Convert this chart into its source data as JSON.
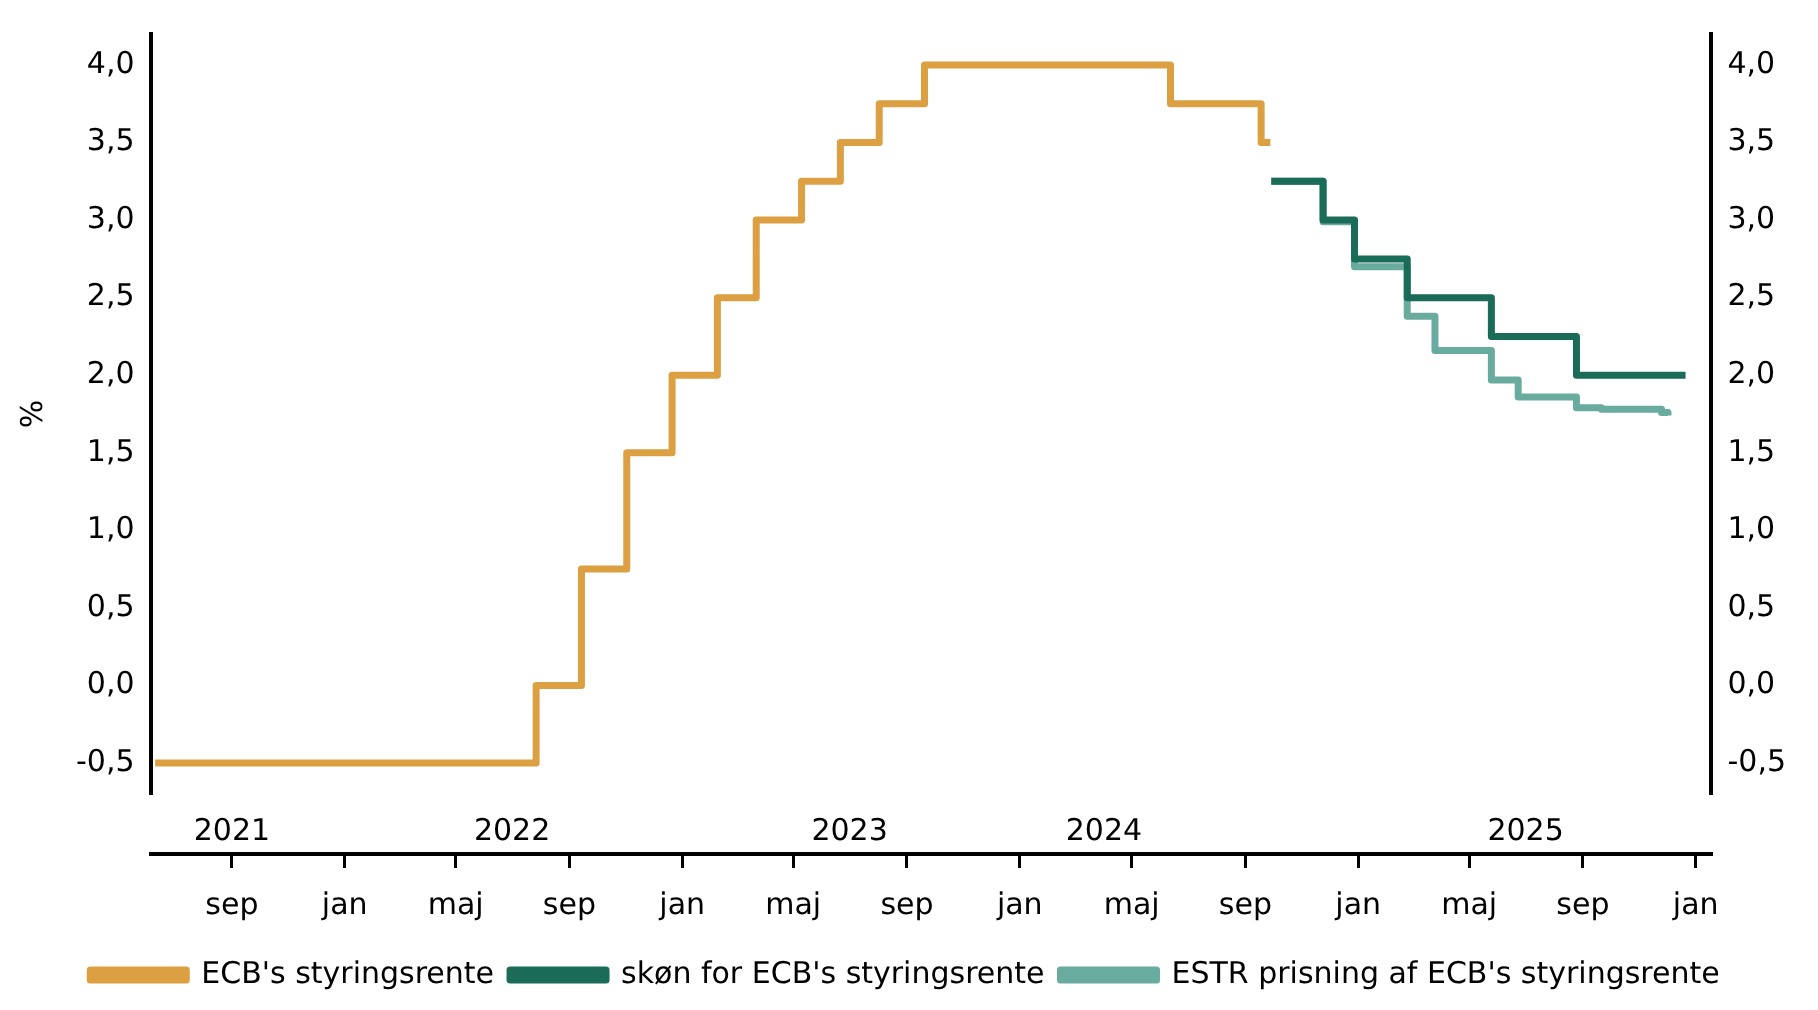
{
  "chart_data": {
    "type": "step",
    "ylabel": "%",
    "legend": "bottom",
    "xlim": [
      "2021-06-05",
      "2026-01-18"
    ],
    "xticks": [
      {
        "value": "2021-09-01",
        "label": "sep"
      },
      {
        "value": "2022-01-01",
        "label": "jan"
      },
      {
        "value": "2022-05-01",
        "label": "maj"
      },
      {
        "value": "2022-09-01",
        "label": "sep"
      },
      {
        "value": "2023-01-01",
        "label": "jan"
      },
      {
        "value": "2023-05-01",
        "label": "maj"
      },
      {
        "value": "2023-09-01",
        "label": "sep"
      },
      {
        "value": "2024-01-01",
        "label": "jan"
      },
      {
        "value": "2024-05-01",
        "label": "maj"
      },
      {
        "value": "2024-09-01",
        "label": "sep"
      },
      {
        "value": "2025-01-01",
        "label": "jan"
      },
      {
        "value": "2025-05-01",
        "label": "maj"
      },
      {
        "value": "2025-09-01",
        "label": "sep"
      },
      {
        "value": "2026-01-01",
        "label": "jan"
      }
    ],
    "x2lim": [
      "2021-06-05",
      "2026-01-18"
    ],
    "x2ticks": [
      {
        "value": "2021-09-01",
        "label": "2021"
      },
      {
        "value": "2022-07-01",
        "label": "2022"
      },
      {
        "value": "2023-07-01",
        "label": "2023"
      },
      {
        "value": "2024-04-01",
        "label": "2024"
      },
      {
        "value": "2025-07-01",
        "label": "2025"
      }
    ],
    "ylim": [
      -0.7,
      4.2
    ],
    "yticks": [
      {
        "value": -0.5,
        "label": "-0,5"
      },
      {
        "value": 0,
        "label": "0,0"
      },
      {
        "value": 0.5,
        "label": "0,5"
      },
      {
        "value": 1,
        "label": "1,0"
      },
      {
        "value": 1.5,
        "label": "1,5"
      },
      {
        "value": 2,
        "label": "2,0"
      },
      {
        "value": 2.5,
        "label": "2,5"
      },
      {
        "value": 3,
        "label": "3,0"
      },
      {
        "value": 3.5,
        "label": "3,5"
      },
      {
        "value": 4,
        "label": "4,0"
      }
    ],
    "y2lim": [
      -0.7,
      4.2
    ],
    "y2ticks": [
      {
        "value": -0.5,
        "label": "-0,5"
      },
      {
        "value": 0,
        "label": "0,0"
      },
      {
        "value": 0.5,
        "label": "0,5"
      },
      {
        "value": 1,
        "label": "1,0"
      },
      {
        "value": 1.5,
        "label": "1,5"
      },
      {
        "value": 2,
        "label": "2,0"
      },
      {
        "value": 2.5,
        "label": "2,5"
      },
      {
        "value": 3,
        "label": "3,0"
      },
      {
        "value": 3.5,
        "label": "3,5"
      },
      {
        "value": 4,
        "label": "4,0"
      }
    ],
    "series": [
      {
        "name": "ECB's styringsrente",
        "color": "#dca043",
        "x": [
          "2021-06-10",
          "2022-07-27",
          "2022-09-14",
          "2022-11-02",
          "2022-12-21",
          "2023-02-08",
          "2023-03-22",
          "2023-05-10",
          "2023-06-21",
          "2023-08-02",
          "2023-09-20",
          "2024-06-12",
          "2024-09-18",
          "2024-09-28"
        ],
        "values": [
          -0.5,
          0,
          0.75,
          1.5,
          2,
          2.5,
          3,
          3.25,
          3.5,
          3.75,
          4,
          3.75,
          3.5,
          3.5
        ]
      },
      {
        "name": "skøn for ECB's styringsrente",
        "color": "#1a6b57",
        "x": [
          "2024-09-29",
          "2024-11-24",
          "2024-12-28",
          "2025-02-23",
          "2025-05-25",
          "2025-08-25",
          "2025-12-21"
        ],
        "values": [
          3.25,
          3,
          2.75,
          2.5,
          2.25,
          2,
          2
        ]
      },
      {
        "name": "ESTR prisning af ECB's styringsrente",
        "color": "#6aaba0",
        "x": [
          "2024-09-29",
          "2024-11-24",
          "2024-12-28",
          "2025-02-23",
          "2025-03-25",
          "2025-05-25",
          "2025-06-23",
          "2025-08-25",
          "2025-09-21",
          "2025-11-25",
          "2025-12-02"
        ],
        "values": [
          3.25,
          2.99,
          2.7,
          2.38,
          2.16,
          1.97,
          1.86,
          1.79,
          1.78,
          1.76,
          1.74
        ]
      }
    ]
  }
}
